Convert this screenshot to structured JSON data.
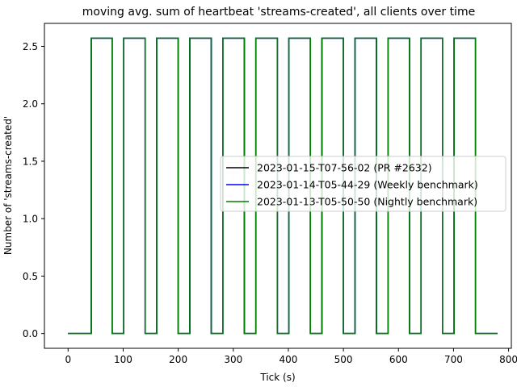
{
  "chart_data": {
    "type": "line",
    "title": "moving avg. sum of heartbeat 'streams-created', all clients over time",
    "xlabel": "Tick (s)",
    "ylabel": "Number of 'streams-created'",
    "xlim": [
      -43,
      805
    ],
    "ylim": [
      -0.1286,
      2.7
    ],
    "xticks": [
      0,
      100,
      200,
      300,
      400,
      500,
      600,
      700,
      800
    ],
    "yticks": [
      0.0,
      0.5,
      1.0,
      1.5,
      2.0,
      2.5
    ],
    "ytick_labels": [
      "0.0",
      "0.5",
      "1.0",
      "1.5",
      "2.0",
      "2.5"
    ],
    "grid": false,
    "legend_position": "center-right",
    "high_value": 2.571,
    "low_value": 0.0,
    "series": [
      {
        "name": "2023-01-15-T07-56-02 (PR #2632)",
        "color": "#000000",
        "x": [
          0,
          42,
          42,
          80,
          80,
          101,
          101,
          140,
          140,
          161,
          161,
          200,
          200,
          221,
          221,
          260,
          260,
          281,
          281,
          320,
          320,
          341,
          341,
          380,
          380,
          401,
          401,
          440,
          440,
          461,
          461,
          500,
          500,
          521,
          521,
          560,
          560,
          581,
          581,
          620,
          620,
          641,
          641,
          680,
          680,
          701,
          701,
          740,
          740,
          780
        ],
        "y": [
          0,
          0,
          2.571,
          2.571,
          0,
          0,
          2.571,
          2.571,
          0,
          0,
          2.571,
          2.571,
          0,
          0,
          2.571,
          2.571,
          0,
          0,
          2.571,
          2.571,
          0,
          0,
          2.571,
          2.571,
          0,
          0,
          2.571,
          2.571,
          0,
          0,
          2.571,
          2.571,
          0,
          0,
          2.571,
          2.571,
          0,
          0,
          2.571,
          2.571,
          0,
          0,
          2.571,
          2.571,
          0,
          0,
          2.571,
          2.571,
          0,
          0
        ]
      },
      {
        "name": "2023-01-14-T05-44-29 (Weekly benchmark)",
        "color": "#0000ff",
        "x": [
          0,
          42,
          42,
          80,
          80,
          101,
          101,
          140,
          140,
          161,
          161,
          200,
          200,
          221,
          221,
          260,
          260,
          281,
          281,
          320,
          320,
          341,
          341,
          380,
          380,
          401,
          401,
          440,
          440,
          461,
          461,
          500,
          500,
          521,
          521,
          560,
          560,
          581,
          581,
          620,
          620,
          641,
          641,
          680,
          680,
          701,
          701,
          740,
          740,
          780
        ],
        "y": [
          0,
          0,
          2.571,
          2.571,
          0,
          0,
          2.571,
          2.571,
          0,
          0,
          2.571,
          2.571,
          0,
          0,
          2.571,
          2.571,
          0,
          0,
          2.571,
          2.571,
          0,
          0,
          2.571,
          2.571,
          0,
          0,
          2.571,
          2.571,
          0,
          0,
          2.571,
          2.571,
          0,
          0,
          2.571,
          2.571,
          0,
          0,
          2.571,
          2.571,
          0,
          0,
          2.571,
          2.571,
          0,
          0,
          2.571,
          2.571,
          0,
          0
        ]
      },
      {
        "name": "2023-01-13-T05-50-50 (Nightly benchmark)",
        "color": "#008000",
        "x": [
          0,
          42,
          42,
          80,
          80,
          101,
          101,
          140,
          140,
          161,
          161,
          200,
          200,
          221,
          221,
          260,
          260,
          281,
          281,
          320,
          320,
          341,
          341,
          380,
          380,
          401,
          401,
          440,
          440,
          461,
          461,
          500,
          500,
          521,
          521,
          560,
          560,
          581,
          581,
          620,
          620,
          641,
          641,
          680,
          680,
          701,
          701,
          740,
          740,
          780
        ],
        "y": [
          0,
          0,
          2.571,
          2.571,
          0,
          0,
          2.571,
          2.571,
          0,
          0,
          2.571,
          2.571,
          0,
          0,
          2.571,
          2.571,
          0,
          0,
          2.571,
          2.571,
          0,
          0,
          2.571,
          2.571,
          0,
          0,
          2.571,
          2.571,
          0,
          0,
          2.571,
          2.571,
          0,
          0,
          2.571,
          2.571,
          0,
          0,
          2.571,
          2.571,
          0,
          0,
          2.571,
          2.571,
          0,
          0,
          2.571,
          2.571,
          0,
          0
        ]
      }
    ]
  }
}
